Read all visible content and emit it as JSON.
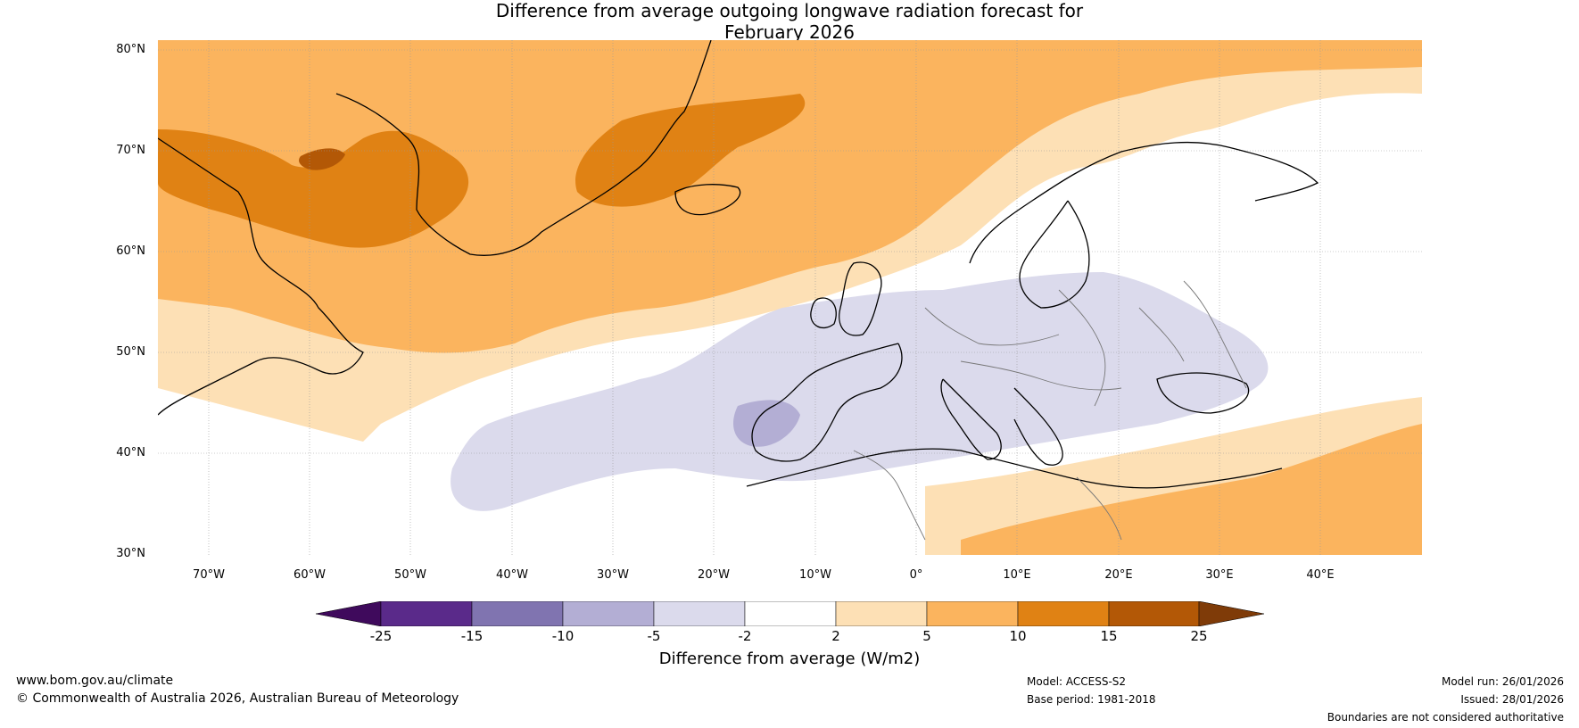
{
  "title_line1": "Difference from average outgoing longwave radiation forecast for",
  "title_line2": "February 2026",
  "map": {
    "lat_labels": [
      "80°N",
      "70°N",
      "60°N",
      "50°N",
      "40°N",
      "30°N"
    ],
    "lon_labels": [
      "70°W",
      "60°W",
      "50°W",
      "40°W",
      "30°W",
      "20°W",
      "10°W",
      "0°",
      "10°E",
      "20°E",
      "30°E",
      "40°E"
    ],
    "lat_range": [
      30,
      81
    ],
    "lon_range": [
      -75,
      50
    ]
  },
  "colorbar": {
    "ticks": [
      "-25",
      "-15",
      "-10",
      "-5",
      "-2",
      "2",
      "5",
      "10",
      "15",
      "25"
    ],
    "colors": [
      "#3f0a5c",
      "#5a2a8a",
      "#8074b0",
      "#b3aed4",
      "#dbdaec",
      "#ffffff",
      "#fde0b5",
      "#fbb45e",
      "#e08214",
      "#b35806",
      "#7f3b08"
    ],
    "label": "Difference from average (W/m2)"
  },
  "footer": {
    "website": "www.bom.gov.au/climate",
    "copyright": "© Commonwealth of Australia 2026, Australian Bureau of Meteorology",
    "model": "Model: ACCESS-S2",
    "base_period": "Base period: 1981-2018",
    "model_run": "Model run: 26/01/2026",
    "issued": "Issued: 28/01/2026",
    "disclaimer": "Boundaries are not considered authoritative"
  }
}
